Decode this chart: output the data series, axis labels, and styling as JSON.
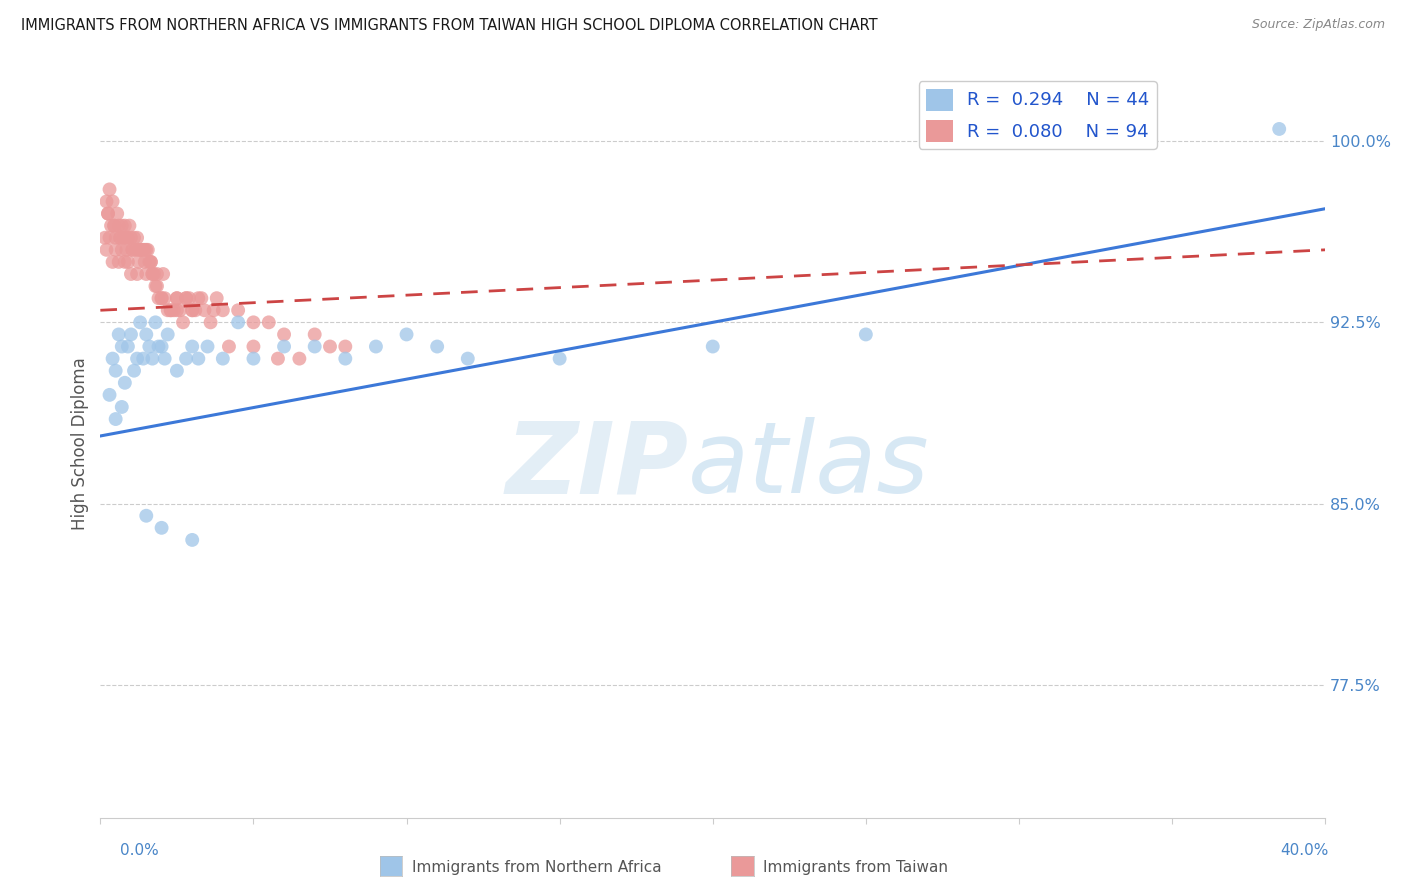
{
  "title": "IMMIGRANTS FROM NORTHERN AFRICA VS IMMIGRANTS FROM TAIWAN HIGH SCHOOL DIPLOMA CORRELATION CHART",
  "source": "Source: ZipAtlas.com",
  "ylabel": "High School Diploma",
  "yticks": [
    77.5,
    85.0,
    92.5,
    100.0
  ],
  "ytick_labels": [
    "77.5%",
    "85.0%",
    "92.5%",
    "100.0%"
  ],
  "xlim": [
    0.0,
    40.0
  ],
  "ylim": [
    72.0,
    103.0
  ],
  "legend_R1": "0.294",
  "legend_N1": "44",
  "legend_R2": "0.080",
  "legend_N2": "94",
  "color_blue": "#9fc5e8",
  "color_pink": "#ea9999",
  "color_blue_line": "#3c78d8",
  "color_pink_line": "#cc4444",
  "color_axis_label": "#4a86c8",
  "blue_line_x0": 0.0,
  "blue_line_y0": 87.8,
  "blue_line_x1": 40.0,
  "blue_line_y1": 97.2,
  "pink_line_x0": 0.0,
  "pink_line_y0": 93.0,
  "pink_line_x1": 40.0,
  "pink_line_y1": 95.5,
  "blue_x": [
    0.3,
    0.4,
    0.5,
    0.6,
    0.7,
    0.8,
    0.9,
    1.0,
    1.1,
    1.2,
    1.3,
    1.4,
    1.5,
    1.6,
    1.7,
    1.8,
    1.9,
    2.0,
    2.1,
    2.2,
    2.5,
    2.8,
    3.0,
    3.2,
    3.5,
    4.0,
    4.5,
    5.0,
    6.0,
    7.0,
    8.0,
    9.0,
    10.0,
    11.0,
    12.0,
    15.0,
    20.0,
    25.0,
    38.5,
    0.5,
    0.7,
    1.5,
    2.0,
    3.0
  ],
  "blue_y": [
    89.5,
    91.0,
    90.5,
    92.0,
    91.5,
    90.0,
    91.5,
    92.0,
    90.5,
    91.0,
    92.5,
    91.0,
    92.0,
    91.5,
    91.0,
    92.5,
    91.5,
    91.5,
    91.0,
    92.0,
    90.5,
    91.0,
    91.5,
    91.0,
    91.5,
    91.0,
    92.5,
    91.0,
    91.5,
    91.5,
    91.0,
    91.5,
    92.0,
    91.5,
    91.0,
    91.0,
    91.5,
    92.0,
    100.5,
    88.5,
    89.0,
    84.5,
    84.0,
    83.5
  ],
  "pink_x": [
    0.15,
    0.2,
    0.25,
    0.3,
    0.35,
    0.4,
    0.45,
    0.5,
    0.55,
    0.6,
    0.65,
    0.7,
    0.75,
    0.8,
    0.85,
    0.9,
    0.95,
    1.0,
    1.05,
    1.1,
    1.15,
    1.2,
    1.25,
    1.3,
    1.35,
    1.4,
    1.45,
    1.5,
    1.55,
    1.6,
    1.65,
    1.7,
    1.75,
    1.8,
    1.85,
    1.9,
    2.0,
    2.1,
    2.2,
    2.3,
    2.4,
    2.5,
    2.6,
    2.7,
    2.8,
    2.9,
    3.0,
    3.1,
    3.2,
    3.4,
    3.6,
    3.8,
    4.0,
    4.5,
    5.0,
    5.5,
    6.0,
    7.0,
    8.0,
    0.2,
    0.3,
    0.4,
    0.5,
    0.6,
    0.7,
    0.8,
    0.9,
    1.0,
    1.2,
    1.5,
    1.7,
    2.0,
    2.3,
    2.5,
    2.8,
    3.0,
    3.3,
    3.7,
    4.2,
    5.0,
    5.8,
    6.5,
    7.5,
    0.25,
    0.45,
    0.65,
    0.85,
    1.05,
    1.25,
    1.45,
    1.65,
    1.85,
    2.05,
    2.5
  ],
  "pink_y": [
    96.0,
    97.5,
    97.0,
    98.0,
    96.5,
    97.5,
    96.5,
    96.0,
    97.0,
    96.5,
    96.0,
    96.5,
    96.0,
    96.5,
    96.0,
    96.0,
    96.5,
    96.0,
    95.5,
    96.0,
    95.5,
    96.0,
    95.5,
    95.5,
    95.5,
    95.5,
    95.5,
    95.5,
    95.5,
    95.0,
    95.0,
    94.5,
    94.5,
    94.0,
    94.0,
    93.5,
    93.5,
    93.5,
    93.0,
    93.0,
    93.0,
    93.0,
    93.0,
    92.5,
    93.5,
    93.5,
    93.0,
    93.0,
    93.5,
    93.0,
    92.5,
    93.5,
    93.0,
    93.0,
    92.5,
    92.5,
    92.0,
    92.0,
    91.5,
    95.5,
    96.0,
    95.0,
    95.5,
    95.0,
    95.5,
    95.0,
    95.0,
    94.5,
    94.5,
    94.5,
    94.5,
    93.5,
    93.0,
    93.5,
    93.5,
    93.0,
    93.5,
    93.0,
    91.5,
    91.5,
    91.0,
    91.0,
    91.5,
    97.0,
    96.5,
    96.0,
    95.5,
    95.5,
    95.0,
    95.0,
    95.0,
    94.5,
    94.5,
    93.5
  ]
}
